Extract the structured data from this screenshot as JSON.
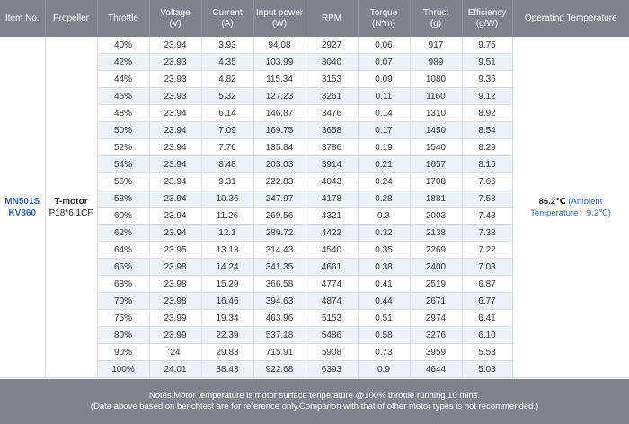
{
  "headers": [
    {
      "key": "item",
      "line1": "Item No.",
      "line2": ""
    },
    {
      "key": "propeller",
      "line1": "Propeller",
      "line2": ""
    },
    {
      "key": "throttle",
      "line1": "Throttle",
      "line2": ""
    },
    {
      "key": "voltage",
      "line1": "Voltage",
      "line2": "(V)"
    },
    {
      "key": "current",
      "line1": "Current",
      "line2": "(A)"
    },
    {
      "key": "input_power",
      "line1": "Input power",
      "line2": "(W)"
    },
    {
      "key": "rpm",
      "line1": "RPM",
      "line2": ""
    },
    {
      "key": "torque",
      "line1": "Torque",
      "line2": "(N*m)"
    },
    {
      "key": "thrust",
      "line1": "Thrust",
      "line2": "(g)"
    },
    {
      "key": "efficiency",
      "line1": "Efficiency",
      "line2": "(g/W)"
    },
    {
      "key": "op_temp",
      "line1": "Operating Temperature",
      "line2": ""
    }
  ],
  "item_no": {
    "line1": "MN501S",
    "line2": "KV360"
  },
  "propeller": {
    "line1": "T-motor",
    "line2": "P18*6.1CF"
  },
  "operating_temperature": {
    "value": "86.2℃",
    "ambient_line1": "(Ambient",
    "ambient_line2": "Temperature：9.2℃)"
  },
  "rows": [
    [
      "40%",
      "23.94",
      "3.93",
      "94.08",
      "2927",
      "0.06",
      "917",
      "9.75"
    ],
    [
      "42%",
      "23.93",
      "4.35",
      "103.99",
      "3040",
      "0.07",
      "989",
      "9.51"
    ],
    [
      "44%",
      "23.93",
      "4.82",
      "115.34",
      "3153",
      "0.09",
      "1080",
      "9.36"
    ],
    [
      "46%",
      "23.93",
      "5.32",
      "127.23",
      "3261",
      "0.11",
      "1160",
      "9.12"
    ],
    [
      "48%",
      "23.94",
      "6.14",
      "146.87",
      "3476",
      "0.14",
      "1310",
      "8.92"
    ],
    [
      "50%",
      "23.94",
      "7.09",
      "169.75",
      "3658",
      "0.17",
      "1450",
      "8.54"
    ],
    [
      "52%",
      "23.94",
      "7.76",
      "185.84",
      "3786",
      "0.19",
      "1540",
      "8.29"
    ],
    [
      "54%",
      "23.94",
      "8.48",
      "203.03",
      "3914",
      "0.21",
      "1657",
      "8.16"
    ],
    [
      "56%",
      "23.94",
      "9.31",
      "222.83",
      "4043",
      "0.24",
      "1708",
      "7.66"
    ],
    [
      "58%",
      "23.94",
      "10.36",
      "247.97",
      "4178",
      "0.28",
      "1881",
      "7.58"
    ],
    [
      "60%",
      "23.94",
      "11.26",
      "269.56",
      "4321",
      "0.3",
      "2003",
      "7.43"
    ],
    [
      "62%",
      "23.94",
      "12.1",
      "289.72",
      "4422",
      "0.32",
      "2138",
      "7.38"
    ],
    [
      "64%",
      "23.95",
      "13.13",
      "314.43",
      "4540",
      "0.35",
      "2269",
      "7.22"
    ],
    [
      "66%",
      "23.98",
      "14.24",
      "341.35",
      "4661",
      "0.38",
      "2400",
      "7.03"
    ],
    [
      "68%",
      "23.98",
      "15.29",
      "366.58",
      "4774",
      "0.41",
      "2519",
      "6.87"
    ],
    [
      "70%",
      "23.98",
      "16.46",
      "394.63",
      "4874",
      "0.44",
      "2671",
      "6.77"
    ],
    [
      "75%",
      "23.99",
      "19.34",
      "463.96",
      "5153",
      "0.51",
      "2974",
      "6.41"
    ],
    [
      "80%",
      "23.99",
      "22.39",
      "537.18",
      "5486",
      "0.58",
      "3276",
      "6.10"
    ],
    [
      "90%",
      "24",
      "29.83",
      "715.91",
      "5908",
      "0.73",
      "3959",
      "5.53"
    ],
    [
      "100%",
      "24.01",
      "38.43",
      "922.68",
      "6393",
      "0.9",
      "4644",
      "5.03"
    ]
  ],
  "notes": {
    "line1": "Notes:Motor temperature is motor surface tenperature @100% throttle running 10 mins.",
    "line2": "(Data above based on benchtest are for reference only.Comparion with that of other motor types is not recommended.)"
  },
  "colors": {
    "header_bg": "#7e838c",
    "accent_blue": "#2e63b5",
    "row_alt": "#edf2fa"
  }
}
